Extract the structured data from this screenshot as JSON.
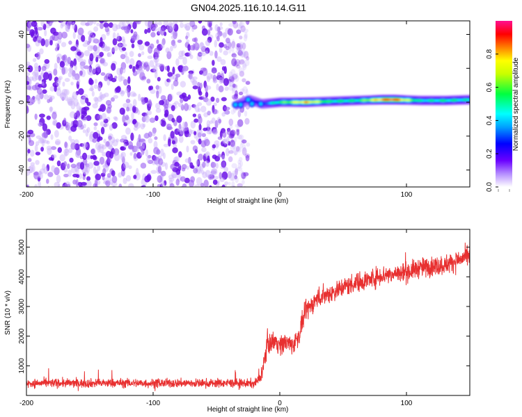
{
  "figure": {
    "title": "GN04.2025.116.10.14.G11"
  },
  "chart_data": [
    {
      "type": "heatmap",
      "title": "GN04.2025.116.10.14.G11",
      "xlabel": "Height of straight line (km)",
      "ylabel": "Frequency (Hz)",
      "xlim": [
        -200,
        150
      ],
      "ylim": [
        -50,
        48
      ],
      "xticks": [
        -200,
        -100,
        0,
        100
      ],
      "yticks": [
        -40,
        -20,
        0,
        20,
        40
      ],
      "grid": false,
      "colorbar": {
        "label": "Normalized spectral amplitude",
        "range": [
          0.0,
          1.0
        ],
        "ticks": [
          0.0,
          0.2,
          0.4,
          0.6,
          0.8
        ],
        "colormap": "rainbow (white-purple-blue-cyan-green-yellow-red-magenta)"
      },
      "noise_region": {
        "x_range": [
          -200,
          -25
        ],
        "y_range": [
          -50,
          48
        ],
        "amplitude_range": [
          0.0,
          0.1
        ],
        "color": "#8a3cf0"
      },
      "signal_ridge": [
        {
          "x": -35,
          "y": -1.5,
          "amplitude": 0.25
        },
        {
          "x": -25,
          "y": 1.5,
          "amplitude": 0.28
        },
        {
          "x": -15,
          "y": -1,
          "amplitude": 0.3
        },
        {
          "x": 0,
          "y": 0,
          "amplitude": 0.55
        },
        {
          "x": 20,
          "y": 0,
          "amplitude": 0.8
        },
        {
          "x": 40,
          "y": 0.5,
          "amplitude": 0.5
        },
        {
          "x": 60,
          "y": 1,
          "amplitude": 0.5
        },
        {
          "x": 80,
          "y": 1.5,
          "amplitude": 0.85
        },
        {
          "x": 90,
          "y": 1.5,
          "amplitude": 0.9
        },
        {
          "x": 110,
          "y": 1,
          "amplitude": 0.45
        },
        {
          "x": 130,
          "y": 1,
          "amplitude": 0.5
        },
        {
          "x": 150,
          "y": 1.5,
          "amplitude": 0.45
        }
      ]
    },
    {
      "type": "line",
      "xlabel": "Height of straight line (km)",
      "ylabel": "SNR (10 * v/v)",
      "xlim": [
        -200,
        150
      ],
      "ylim": [
        0,
        5600
      ],
      "xticks": [
        -200,
        -100,
        0,
        100
      ],
      "yticks": [
        1000,
        2000,
        3000,
        4000,
        5000
      ],
      "grid": false,
      "series": [
        {
          "color": "#e83030",
          "x": [
            -200,
            -180,
            -160,
            -140,
            -120,
            -100,
            -80,
            -60,
            -40,
            -20,
            -15,
            -12,
            -10,
            -8,
            -5,
            0,
            5,
            10,
            15,
            20,
            30,
            40,
            50,
            60,
            70,
            80,
            90,
            100,
            110,
            120,
            130,
            140,
            150
          ],
          "y": [
            400,
            420,
            410,
            415,
            420,
            410,
            415,
            410,
            420,
            400,
            600,
            1200,
            1800,
            1700,
            1900,
            1700,
            1800,
            1700,
            2000,
            2800,
            3300,
            3450,
            3650,
            3800,
            3900,
            4050,
            4100,
            4150,
            4300,
            4350,
            4400,
            4550,
            4700
          ],
          "noise_amplitude": 300
        }
      ]
    }
  ]
}
